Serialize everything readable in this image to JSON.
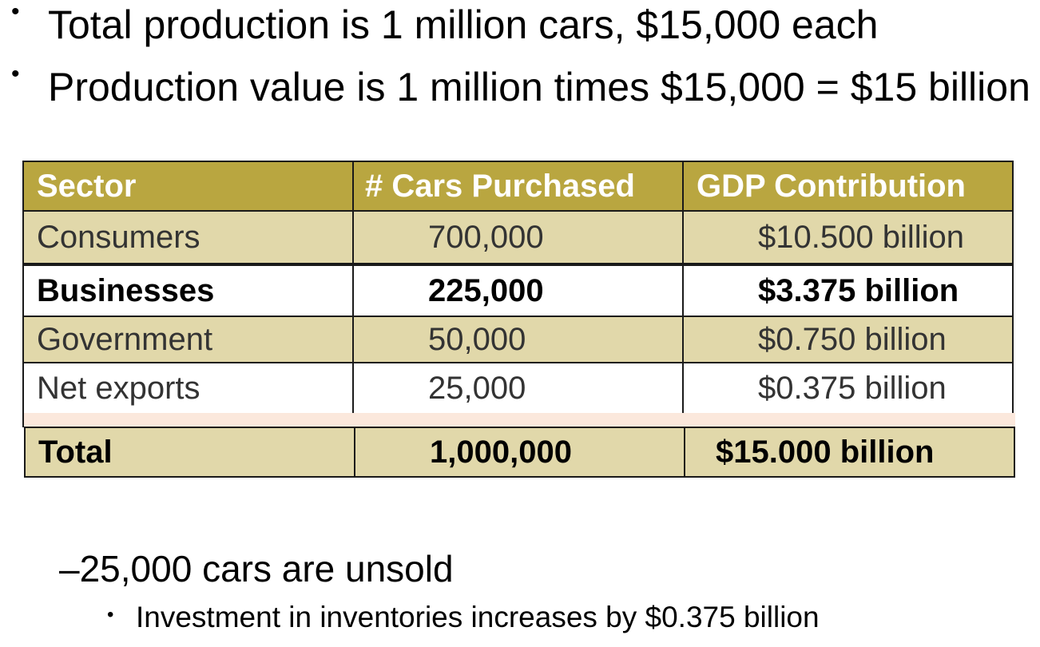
{
  "bullets": [
    "Total production is 1 million cars, $15,000 each",
    "Production value is 1 million times $15,000 = $15 billion"
  ],
  "table": {
    "headers": [
      "Sector",
      "# Cars Purchased",
      "GDP Contribution"
    ],
    "rows": [
      [
        "Consumers",
        "700,000",
        "$10.500 billion"
      ],
      [
        "Businesses",
        "225,000",
        "$3.375 billion"
      ],
      [
        "Government",
        "50,000",
        "$0.750 billion"
      ],
      [
        "Net exports",
        "25,000",
        "$0.375 billion"
      ]
    ],
    "total": [
      "Total",
      "1,000,000",
      "$15.000 billion"
    ]
  },
  "sub_bullet": "25,000 cars are unsold",
  "sub_sub_bullet": "Investment in inventories increases by $0.375 billion",
  "colors": {
    "header_bg": "#b9a640",
    "tan_row_bg": "#e1d8aa",
    "overlap_peek_bg": "#fbe8dc"
  }
}
